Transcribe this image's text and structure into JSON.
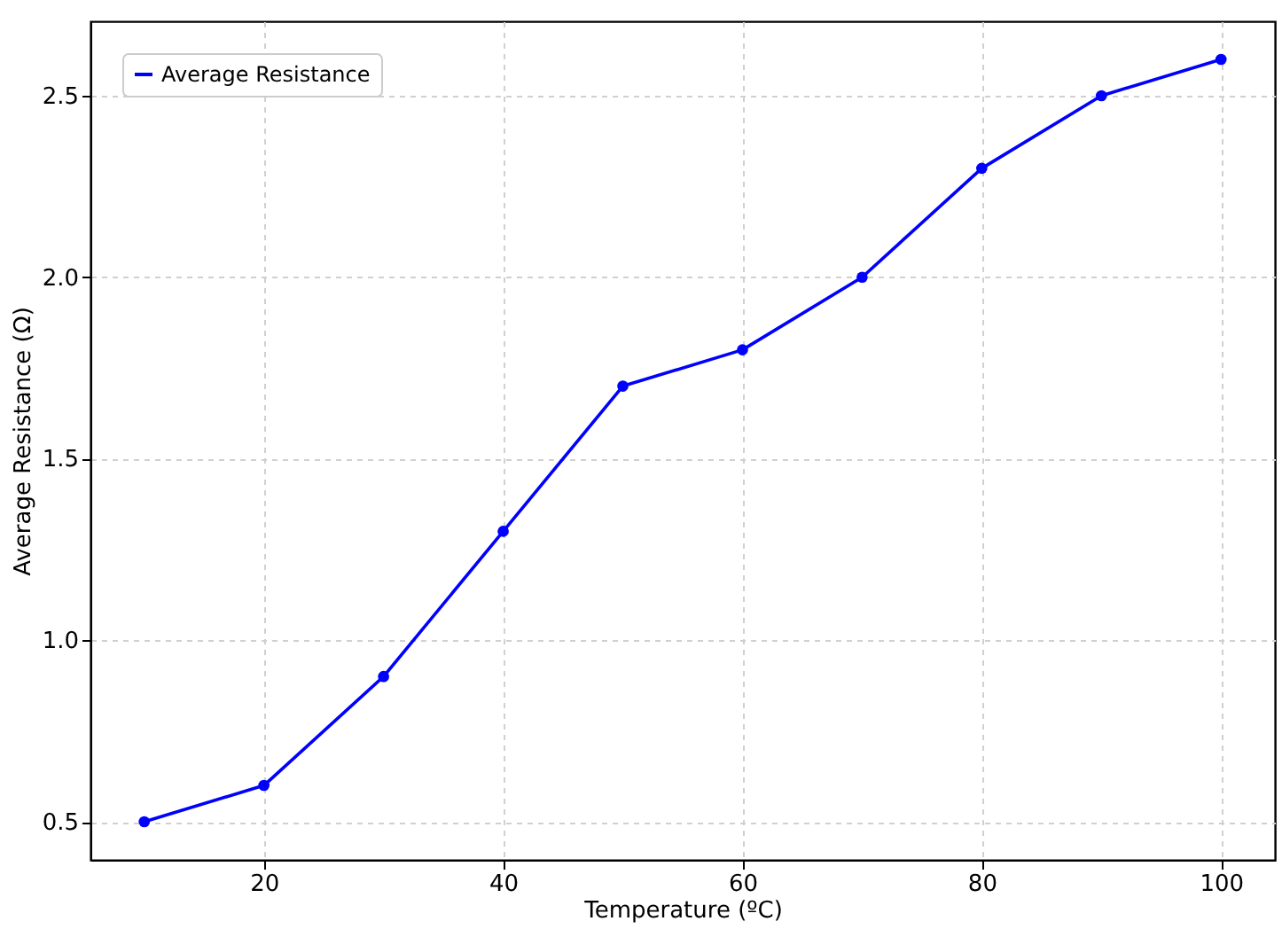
{
  "chart_data": {
    "type": "line",
    "xlabel": "Temperature (ºC)",
    "ylabel": "Average Resistance (Ω)",
    "x": [
      10,
      20,
      30,
      40,
      50,
      60,
      70,
      80,
      90,
      100
    ],
    "series": [
      {
        "name": "Average Resistance",
        "color": "#0000ff",
        "values": [
          0.5,
          0.6,
          0.9,
          1.3,
          1.7,
          1.8,
          2.0,
          2.3,
          2.5,
          2.6
        ]
      }
    ],
    "xlim": [
      5.5,
      104.5
    ],
    "xticks": [
      20,
      40,
      60,
      80,
      100
    ],
    "ylim": [
      0.395,
      2.705
    ],
    "yticks": [
      0.5,
      {
        "value": 1,
        "label": "1.0"
      },
      1.5,
      {
        "value": 2,
        "label": "2.0"
      },
      2.5
    ],
    "grid": true,
    "legend": "top left",
    "marker": "circle",
    "line_style": "solid"
  }
}
